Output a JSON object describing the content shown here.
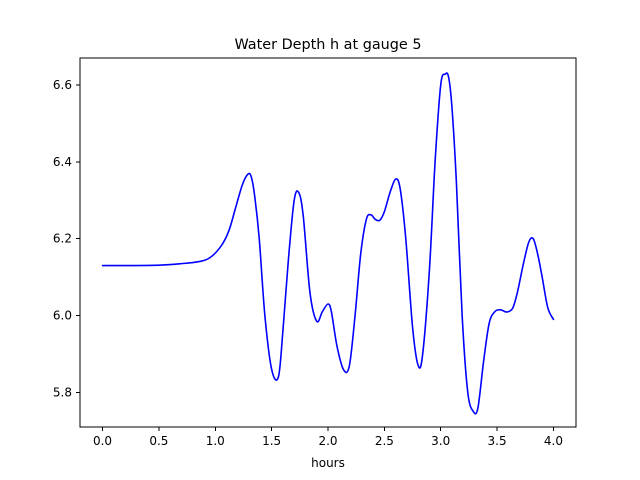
{
  "chart_data": {
    "type": "line",
    "title": "Water Depth h at gauge 5",
    "xlabel": "hours",
    "ylabel": "",
    "xlim": [
      -0.2,
      4.2
    ],
    "ylim": [
      5.71,
      6.67
    ],
    "xticks": [
      0.0,
      0.5,
      1.0,
      1.5,
      2.0,
      2.5,
      3.0,
      3.5,
      4.0
    ],
    "xtick_labels": [
      "0.0",
      "0.5",
      "1.0",
      "1.5",
      "2.0",
      "2.5",
      "3.0",
      "3.5",
      "4.0"
    ],
    "yticks": [
      5.8,
      6.0,
      6.2,
      6.4,
      6.6
    ],
    "ytick_labels": [
      "5.8",
      "6.0",
      "6.2",
      "6.4",
      "6.6"
    ],
    "grid": false,
    "legend": "none",
    "series": [
      {
        "color": "#0000ff",
        "x": [
          0.0,
          0.2,
          0.5,
          0.7,
          0.85,
          0.95,
          1.05,
          1.12,
          1.18,
          1.24,
          1.29,
          1.32,
          1.35,
          1.39,
          1.44,
          1.5,
          1.56,
          1.6,
          1.65,
          1.7,
          1.74,
          1.78,
          1.84,
          1.9,
          1.95,
          2.0,
          2.03,
          2.08,
          2.14,
          2.19,
          2.24,
          2.29,
          2.34,
          2.38,
          2.42,
          2.46,
          2.5,
          2.55,
          2.6,
          2.64,
          2.69,
          2.75,
          2.8,
          2.84,
          2.9,
          2.95,
          3.0,
          3.04,
          3.07,
          3.1,
          3.14,
          3.19,
          3.24,
          3.29,
          3.33,
          3.38,
          3.43,
          3.48,
          3.53,
          3.57,
          3.6,
          3.64,
          3.68,
          3.73,
          3.78,
          3.82,
          3.86,
          3.9,
          3.95,
          4.0
        ],
        "values": [
          6.13,
          6.13,
          6.131,
          6.135,
          6.14,
          6.15,
          6.18,
          6.22,
          6.28,
          6.34,
          6.368,
          6.36,
          6.31,
          6.2,
          6.0,
          5.86,
          5.84,
          5.96,
          6.15,
          6.3,
          6.32,
          6.26,
          6.06,
          5.985,
          6.01,
          6.03,
          6.01,
          5.92,
          5.858,
          5.87,
          6.0,
          6.16,
          6.25,
          6.262,
          6.25,
          6.248,
          6.27,
          6.32,
          6.355,
          6.33,
          6.2,
          5.97,
          5.87,
          5.9,
          6.12,
          6.4,
          6.6,
          6.628,
          6.62,
          6.54,
          6.34,
          6.0,
          5.8,
          5.75,
          5.76,
          5.88,
          5.98,
          6.01,
          6.015,
          6.01,
          6.01,
          6.02,
          6.06,
          6.13,
          6.19,
          6.2,
          6.16,
          6.1,
          6.02,
          5.99
        ]
      }
    ]
  }
}
